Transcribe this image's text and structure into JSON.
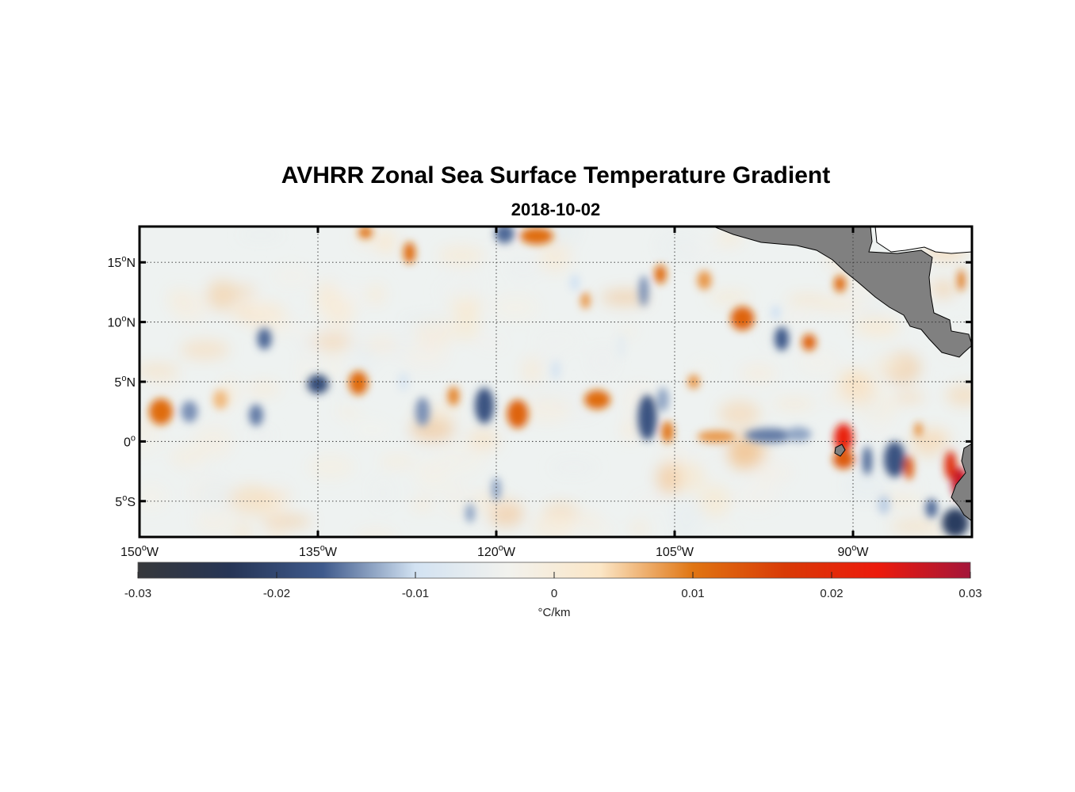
{
  "title": "AVHRR Zonal Sea Surface Temperature Gradient",
  "subtitle": "2018-10-02",
  "map": {
    "extent": {
      "lon_min": -150,
      "lon_max": -80,
      "lat_min": -8,
      "lat_max": 18
    },
    "lat_ticks": [
      {
        "value": 15,
        "num": "15",
        "hemi": "N"
      },
      {
        "value": 10,
        "num": "10",
        "hemi": "N"
      },
      {
        "value": 5,
        "num": "5",
        "hemi": "N"
      },
      {
        "value": 0,
        "num": "0",
        "hemi": ""
      },
      {
        "value": -5,
        "num": "5",
        "hemi": "S"
      }
    ],
    "lon_ticks": [
      {
        "value": -150,
        "num": "150",
        "hemi": "W"
      },
      {
        "value": -135,
        "num": "135",
        "hemi": "W"
      },
      {
        "value": -120,
        "num": "120",
        "hemi": "W"
      },
      {
        "value": -105,
        "num": "105",
        "hemi": "W"
      },
      {
        "value": -90,
        "num": "90",
        "hemi": "W"
      }
    ],
    "land_color": "#808080",
    "grid": "dotted",
    "features": [
      {
        "lon": -148.2,
        "lat": 2.5,
        "v": 0.011,
        "rx": 1.0,
        "ry": 1.1
      },
      {
        "lon": -145.8,
        "lat": 2.5,
        "v": -0.014,
        "rx": 0.7,
        "ry": 0.9
      },
      {
        "lon": -140.2,
        "lat": 2.2,
        "v": -0.015,
        "rx": 0.6,
        "ry": 0.9
      },
      {
        "lon": -139.5,
        "lat": 8.6,
        "v": -0.016,
        "rx": 0.6,
        "ry": 0.9
      },
      {
        "lon": -135.0,
        "lat": 4.8,
        "v": -0.019,
        "rx": 0.9,
        "ry": 0.8
      },
      {
        "lon": -131.6,
        "lat": 4.9,
        "v": 0.011,
        "rx": 0.8,
        "ry": 1.0
      },
      {
        "lon": -126.2,
        "lat": 2.5,
        "v": -0.014,
        "rx": 0.6,
        "ry": 1.2
      },
      {
        "lon": -123.6,
        "lat": 3.8,
        "v": 0.009,
        "rx": 0.5,
        "ry": 0.8
      },
      {
        "lon": -121.0,
        "lat": 3.0,
        "v": -0.018,
        "rx": 0.8,
        "ry": 1.5
      },
      {
        "lon": -118.2,
        "lat": 2.3,
        "v": 0.012,
        "rx": 0.9,
        "ry": 1.2
      },
      {
        "lon": -119.3,
        "lat": 17.4,
        "v": -0.016,
        "rx": 0.8,
        "ry": 0.8
      },
      {
        "lon": -116.6,
        "lat": 17.2,
        "v": 0.011,
        "rx": 1.4,
        "ry": 0.7
      },
      {
        "lon": -111.5,
        "lat": 3.5,
        "v": 0.011,
        "rx": 1.1,
        "ry": 0.8
      },
      {
        "lon": -107.3,
        "lat": 2.0,
        "v": -0.018,
        "rx": 0.8,
        "ry": 1.9
      },
      {
        "lon": -106.0,
        "lat": 3.5,
        "v": -0.013,
        "rx": 0.5,
        "ry": 1.0
      },
      {
        "lon": -105.6,
        "lat": 0.8,
        "v": 0.01,
        "rx": 0.5,
        "ry": 0.9
      },
      {
        "lon": -107.6,
        "lat": 12.6,
        "v": -0.014,
        "rx": 0.4,
        "ry": 1.3
      },
      {
        "lon": -106.2,
        "lat": 14.0,
        "v": 0.011,
        "rx": 0.5,
        "ry": 0.8
      },
      {
        "lon": -101.5,
        "lat": 0.4,
        "v": 0.008,
        "rx": 1.6,
        "ry": 0.5
      },
      {
        "lon": -97.0,
        "lat": 0.5,
        "v": -0.015,
        "rx": 2.1,
        "ry": 0.6
      },
      {
        "lon": -94.6,
        "lat": 0.6,
        "v": -0.013,
        "rx": 1.1,
        "ry": 0.6
      },
      {
        "lon": -99.3,
        "lat": 10.3,
        "v": 0.012,
        "rx": 1.0,
        "ry": 1.0
      },
      {
        "lon": -96.0,
        "lat": 8.6,
        "v": -0.017,
        "rx": 0.6,
        "ry": 1.0
      },
      {
        "lon": -93.7,
        "lat": 8.3,
        "v": 0.012,
        "rx": 0.6,
        "ry": 0.7
      },
      {
        "lon": -91.1,
        "lat": 13.2,
        "v": 0.011,
        "rx": 0.5,
        "ry": 0.7
      },
      {
        "lon": -90.8,
        "lat": 0.3,
        "v": 0.022,
        "rx": 0.8,
        "ry": 1.2
      },
      {
        "lon": -90.8,
        "lat": -1.5,
        "v": 0.013,
        "rx": 0.9,
        "ry": 0.8
      },
      {
        "lon": -88.8,
        "lat": -1.6,
        "v": -0.016,
        "rx": 0.4,
        "ry": 1.2
      },
      {
        "lon": -86.5,
        "lat": -1.5,
        "v": -0.018,
        "rx": 0.9,
        "ry": 1.5
      },
      {
        "lon": -85.3,
        "lat": -2.2,
        "v": 0.013,
        "rx": 0.4,
        "ry": 1.0
      },
      {
        "lon": -81.8,
        "lat": -2.0,
        "v": 0.019,
        "rx": 0.5,
        "ry": 1.2
      },
      {
        "lon": -81.0,
        "lat": -3.5,
        "v": 0.027,
        "rx": 0.7,
        "ry": 1.3
      },
      {
        "lon": -81.4,
        "lat": -6.8,
        "v": -0.022,
        "rx": 1.1,
        "ry": 1.2
      },
      {
        "lon": -83.4,
        "lat": -5.6,
        "v": -0.016,
        "rx": 0.5,
        "ry": 0.8
      },
      {
        "lon": -87.4,
        "lat": -5.3,
        "v": -0.011,
        "rx": 0.5,
        "ry": 0.8
      },
      {
        "lon": -127.3,
        "lat": 15.8,
        "v": 0.011,
        "rx": 0.5,
        "ry": 0.9
      },
      {
        "lon": -113.4,
        "lat": 13.3,
        "v": -0.01,
        "rx": 0.4,
        "ry": 0.7
      },
      {
        "lon": -112.5,
        "lat": 11.8,
        "v": 0.008,
        "rx": 0.4,
        "ry": 0.7
      },
      {
        "lon": -120.0,
        "lat": -4.0,
        "v": -0.013,
        "rx": 0.4,
        "ry": 1.0
      },
      {
        "lon": -122.2,
        "lat": -6.0,
        "v": -0.013,
        "rx": 0.4,
        "ry": 0.8
      },
      {
        "lon": -127.8,
        "lat": 5.0,
        "v": -0.008,
        "rx": 0.5,
        "ry": 0.8
      },
      {
        "lon": -143.2,
        "lat": 3.5,
        "v": 0.006,
        "rx": 0.6,
        "ry": 0.8
      },
      {
        "lon": -102.5,
        "lat": 13.5,
        "v": 0.008,
        "rx": 0.6,
        "ry": 0.8
      },
      {
        "lon": -103.4,
        "lat": 5.0,
        "v": 0.008,
        "rx": 0.5,
        "ry": 0.6
      },
      {
        "lon": -115.0,
        "lat": 6.0,
        "v": -0.009,
        "rx": 0.4,
        "ry": 0.8
      },
      {
        "lon": -131.0,
        "lat": 17.5,
        "v": 0.01,
        "rx": 0.6,
        "ry": 0.5
      },
      {
        "lon": -109.5,
        "lat": 8.0,
        "v": -0.006,
        "rx": 0.4,
        "ry": 1.0
      },
      {
        "lon": -96.5,
        "lat": 10.8,
        "v": -0.01,
        "rx": 0.4,
        "ry": 0.6
      },
      {
        "lon": -84.5,
        "lat": 1.0,
        "v": 0.009,
        "rx": 0.3,
        "ry": 0.6
      },
      {
        "lon": -85.8,
        "lat": 14.0,
        "v": -0.008,
        "rx": 0.3,
        "ry": 0.6
      },
      {
        "lon": -80.9,
        "lat": 13.5,
        "v": 0.01,
        "rx": 0.3,
        "ry": 0.9
      }
    ]
  },
  "colorbar": {
    "min": -0.03,
    "max": 0.03,
    "ticks": [
      {
        "value": -0.03,
        "label": "-0.03"
      },
      {
        "value": -0.02,
        "label": "-0.02"
      },
      {
        "value": -0.01,
        "label": "-0.01"
      },
      {
        "value": 0,
        "label": "0"
      },
      {
        "value": 0.01,
        "label": "0.01"
      },
      {
        "value": 0.02,
        "label": "0.02"
      },
      {
        "value": 0.03,
        "label": "0.03"
      }
    ],
    "units_label": "°C/km",
    "colors": [
      "#36383b",
      "#263556",
      "#3f5a8c",
      "#d2e2f2",
      "#f2f2ee",
      "#fbe6c6",
      "#e07512",
      "#d93a06",
      "#ec1a0c",
      "#a4163a"
    ]
  }
}
